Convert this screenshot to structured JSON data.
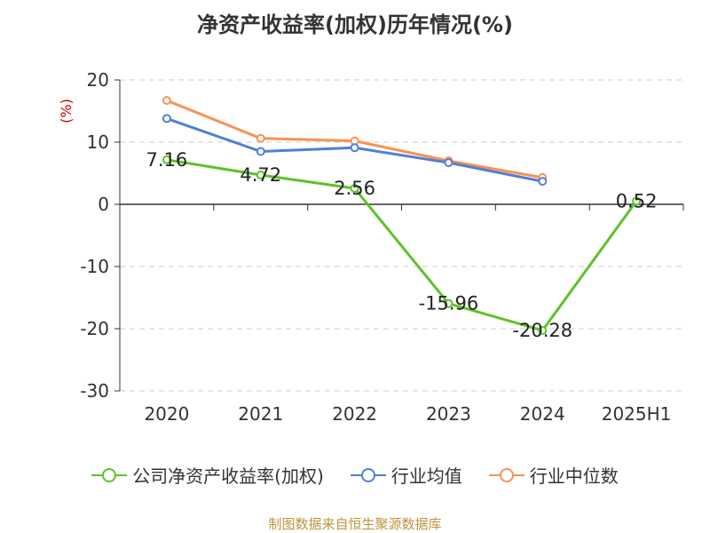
{
  "title": "净资产收益率(加权)历年情况(%)",
  "footer": "制图数据来自恒生聚源数据库",
  "colors": {
    "company": "#5ec22a",
    "industry_avg": "#4f7fd9",
    "industry_median": "#f79257",
    "unit_label": "#cc0000",
    "grid": "#cccccc",
    "axis": "#333333"
  },
  "chart_data": {
    "type": "line",
    "ylabel": "(%)",
    "categories": [
      "2020",
      "2021",
      "2022",
      "2023",
      "2024",
      "2025H1"
    ],
    "ylim": [
      -30,
      20
    ],
    "yticks": [
      20,
      10,
      0,
      -10,
      -20,
      -30
    ],
    "grid": true,
    "legend_position": "bottom",
    "series": [
      {
        "name": "公司净资产收益率(加权)",
        "values": [
          7.16,
          4.72,
          2.56,
          -15.96,
          -20.28,
          0.52
        ],
        "labels": [
          "7.16",
          "4.72",
          "2.56",
          "-15.96",
          "-20.28",
          "0.52"
        ]
      },
      {
        "name": "行业均值",
        "values": [
          13.8,
          8.5,
          9.1,
          6.7,
          3.7,
          null
        ]
      },
      {
        "name": "行业中位数",
        "values": [
          16.7,
          10.6,
          10.2,
          7.0,
          4.3,
          null
        ]
      }
    ]
  }
}
